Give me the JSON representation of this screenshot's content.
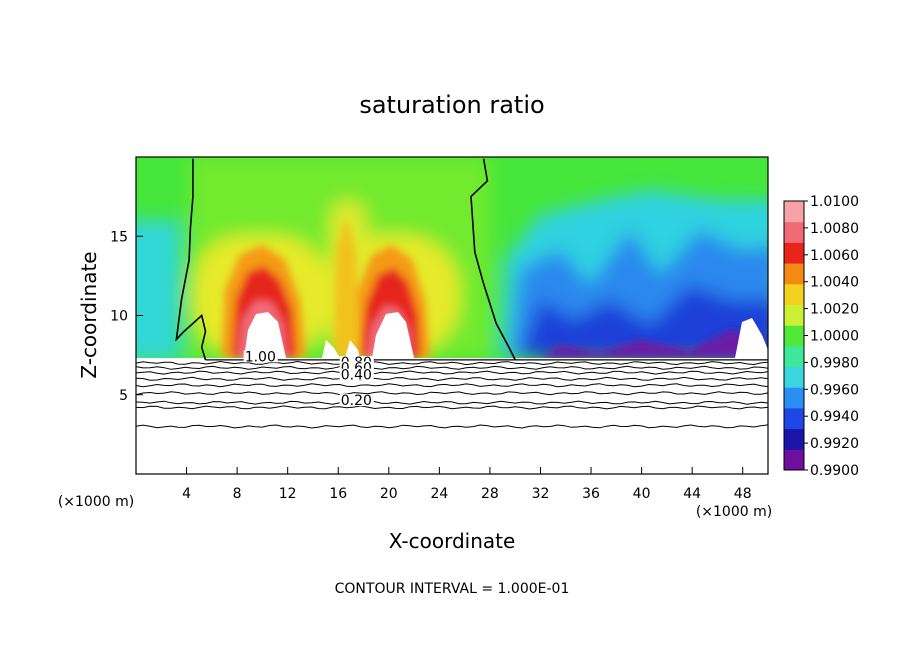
{
  "chart_data": {
    "type": "heatmap",
    "title": "saturation ratio",
    "xlabel": "X-coordinate",
    "ylabel": "Z-coordinate",
    "x_unit_label": "(×1000 m)",
    "z_unit_label": "(×1000 m)",
    "footer": "CONTOUR INTERVAL = 1.000E-01",
    "xlim": [
      0,
      50
    ],
    "ylim": [
      0,
      20
    ],
    "x_ticks": [
      4,
      8,
      12,
      16,
      20,
      24,
      28,
      32,
      36,
      40,
      44,
      48
    ],
    "y_ticks": [
      5,
      10,
      15
    ],
    "colorbar": {
      "levels": [
        "0.9900",
        "0.9920",
        "0.9940",
        "0.9960",
        "0.9980",
        "1.0000",
        "1.0020",
        "1.0040",
        "1.0060",
        "1.0080",
        "1.0100"
      ],
      "colors": [
        "#6e0fa0",
        "#1a14a8",
        "#1f47e6",
        "#2a8ef2",
        "#3ad6e0",
        "#3ee89a",
        "#52e83a",
        "#cdf034",
        "#f2d21f",
        "#f58a12",
        "#e8241b",
        "#f06a78",
        "#f6a2a6"
      ]
    },
    "contour_labels": [
      "1.00",
      "0.80",
      "0.60",
      "0.40",
      "0.20"
    ],
    "contour_label_values": [
      1.0,
      0.8,
      0.6,
      0.4,
      0.2
    ],
    "cloud_base_z": 7.2,
    "line_contour_z": [
      7.0,
      6.7,
      6.4,
      6.0,
      5.6,
      5.1,
      4.5,
      4.2,
      3.0
    ],
    "isoline_1_00": [
      [
        [
          4.5,
          19.9
        ],
        [
          4.5,
          17.5
        ],
        [
          4.3,
          15.5
        ],
        [
          4.2,
          13.5
        ],
        [
          3.6,
          11.0
        ],
        [
          3.2,
          8.5
        ],
        [
          3.8,
          9.0
        ],
        [
          5.2,
          10.0
        ],
        [
          5.5,
          9.0
        ],
        [
          5.2,
          8.0
        ],
        [
          5.5,
          7.2
        ]
      ],
      [
        [
          27.5,
          19.9
        ],
        [
          27.8,
          18.5
        ],
        [
          26.5,
          17.5
        ],
        [
          26.8,
          14.0
        ],
        [
          27.5,
          12.0
        ],
        [
          28.5,
          9.5
        ],
        [
          29.5,
          8.0
        ],
        [
          30.0,
          7.2
        ]
      ]
    ]
  }
}
